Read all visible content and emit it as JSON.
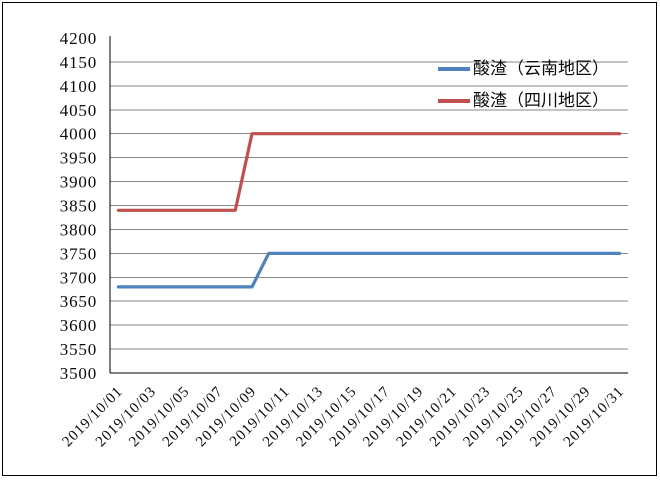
{
  "chart_data": {
    "type": "line",
    "title": "",
    "xlabel": "",
    "ylabel": "",
    "ylim": [
      3500,
      4200
    ],
    "y_ticks": [
      3500,
      3550,
      3600,
      3650,
      3700,
      3750,
      3800,
      3850,
      3900,
      3950,
      4000,
      4050,
      4100,
      4150,
      4200
    ],
    "x_label_every": 2,
    "grid": true,
    "legend_position": "top-right-inside",
    "x": [
      "2019/10/01",
      "2019/10/02",
      "2019/10/03",
      "2019/10/04",
      "2019/10/05",
      "2019/10/06",
      "2019/10/07",
      "2019/10/08",
      "2019/10/09",
      "2019/10/10",
      "2019/10/11",
      "2019/10/12",
      "2019/10/13",
      "2019/10/14",
      "2019/10/15",
      "2019/10/16",
      "2019/10/17",
      "2019/10/18",
      "2019/10/19",
      "2019/10/20",
      "2019/10/21",
      "2019/10/22",
      "2019/10/23",
      "2019/10/24",
      "2019/10/25",
      "2019/10/26",
      "2019/10/27",
      "2019/10/28",
      "2019/10/29",
      "2019/10/30",
      "2019/10/31"
    ],
    "series": [
      {
        "name": "酸渣（云南地区）",
        "color": "#4F81BD",
        "values": [
          3680,
          3680,
          3680,
          3680,
          3680,
          3680,
          3680,
          3680,
          3680,
          3750,
          3750,
          3750,
          3750,
          3750,
          3750,
          3750,
          3750,
          3750,
          3750,
          3750,
          3750,
          3750,
          3750,
          3750,
          3750,
          3750,
          3750,
          3750,
          3750,
          3750,
          3750
        ]
      },
      {
        "name": "酸渣（四川地区）",
        "color": "#C0504D",
        "values": [
          3840,
          3840,
          3840,
          3840,
          3840,
          3840,
          3840,
          3840,
          4000,
          4000,
          4000,
          4000,
          4000,
          4000,
          4000,
          4000,
          4000,
          4000,
          4000,
          4000,
          4000,
          4000,
          4000,
          4000,
          4000,
          4000,
          4000,
          4000,
          4000,
          4000,
          4000
        ]
      }
    ],
    "style": {
      "background": "#ffffff",
      "border_color": "#000000",
      "axis_color": "#000000",
      "gridline_color": "#878787",
      "text_color": "#0a0a0a"
    }
  }
}
